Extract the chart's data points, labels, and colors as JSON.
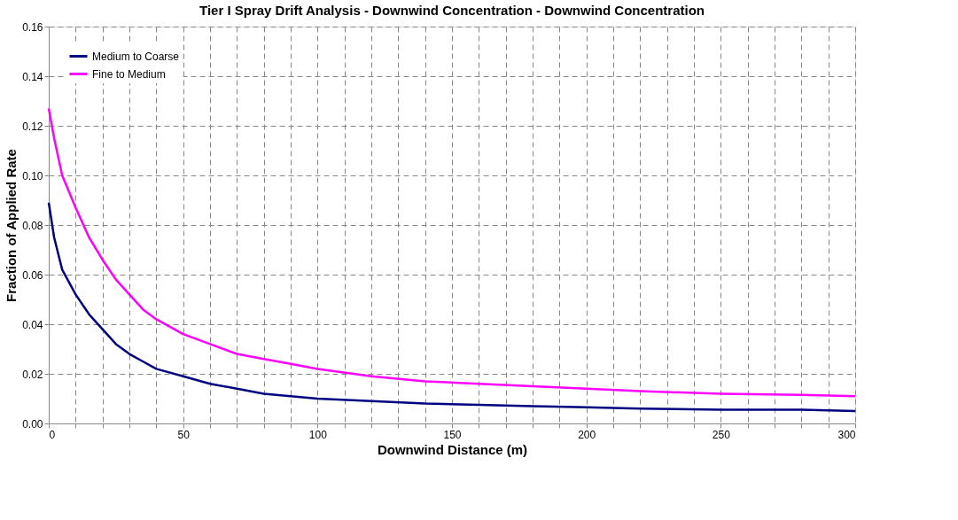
{
  "chart_data": {
    "type": "line",
    "title": "Tier I Spray Drift Analysis - Downwind Concentration - Downwind Concentration",
    "xlabel": "Downwind Distance (m)",
    "ylabel": "Fraction of Applied Rate",
    "x": [
      0,
      2,
      5,
      10,
      15,
      20,
      25,
      30,
      35,
      40,
      50,
      60,
      70,
      80,
      90,
      100,
      120,
      140,
      160,
      180,
      200,
      220,
      250,
      280,
      300
    ],
    "series": [
      {
        "name": "Medium to Coarse",
        "color": "#000080",
        "values": [
          0.089,
          0.075,
          0.062,
          0.052,
          0.044,
          0.038,
          0.032,
          0.028,
          0.025,
          0.022,
          0.019,
          0.016,
          0.014,
          0.012,
          0.011,
          0.01,
          0.009,
          0.008,
          0.0075,
          0.007,
          0.0065,
          0.006,
          0.0055,
          0.0055,
          0.005
        ]
      },
      {
        "name": "Fine to Medium",
        "color": "#ff00ff",
        "values": [
          0.127,
          0.115,
          0.1,
          0.087,
          0.075,
          0.066,
          0.058,
          0.052,
          0.046,
          0.042,
          0.036,
          0.032,
          0.028,
          0.026,
          0.024,
          0.022,
          0.019,
          0.017,
          0.016,
          0.015,
          0.014,
          0.013,
          0.012,
          0.0115,
          0.011
        ]
      }
    ],
    "xlim": [
      0,
      300
    ],
    "xticks": [
      0,
      {
        "value": 10,
        "label": null
      },
      {
        "value": 20,
        "label": null
      },
      {
        "value": 30,
        "label": null
      },
      {
        "value": 40,
        "label": null
      },
      50,
      {
        "value": 60,
        "label": null
      },
      {
        "value": 70,
        "label": null
      },
      {
        "value": 80,
        "label": null
      },
      {
        "value": 90,
        "label": null
      },
      100,
      {
        "value": 110,
        "label": null
      },
      {
        "value": 120,
        "label": null
      },
      {
        "value": 130,
        "label": null
      },
      {
        "value": 140,
        "label": null
      },
      150,
      {
        "value": 160,
        "label": null
      },
      {
        "value": 170,
        "label": null
      },
      {
        "value": 180,
        "label": null
      },
      {
        "value": 190,
        "label": null
      },
      200,
      {
        "value": 210,
        "label": null
      },
      {
        "value": 220,
        "label": null
      },
      {
        "value": 230,
        "label": null
      },
      {
        "value": 240,
        "label": null
      },
      250,
      {
        "value": 260,
        "label": null
      },
      {
        "value": 270,
        "label": null
      },
      {
        "value": 280,
        "label": null
      },
      {
        "value": 290,
        "label": null
      },
      300
    ],
    "ylim": [
      0,
      0.16
    ],
    "yticks": [
      {
        "value": 0,
        "label": "0.00"
      },
      {
        "value": 0.02,
        "label": "0.02"
      },
      {
        "value": 0.04,
        "label": "0.04"
      },
      {
        "value": 0.06,
        "label": "0.06"
      },
      {
        "value": 0.08,
        "label": "0.08"
      },
      {
        "value": 0.1,
        "label": "0.10"
      },
      {
        "value": 0.12,
        "label": "0.12"
      },
      {
        "value": 0.14,
        "label": "0.14"
      },
      {
        "value": 0.16,
        "label": "0.16"
      }
    ],
    "grid": true,
    "legend": "top left",
    "marker": "none",
    "line_style": "solid"
  }
}
